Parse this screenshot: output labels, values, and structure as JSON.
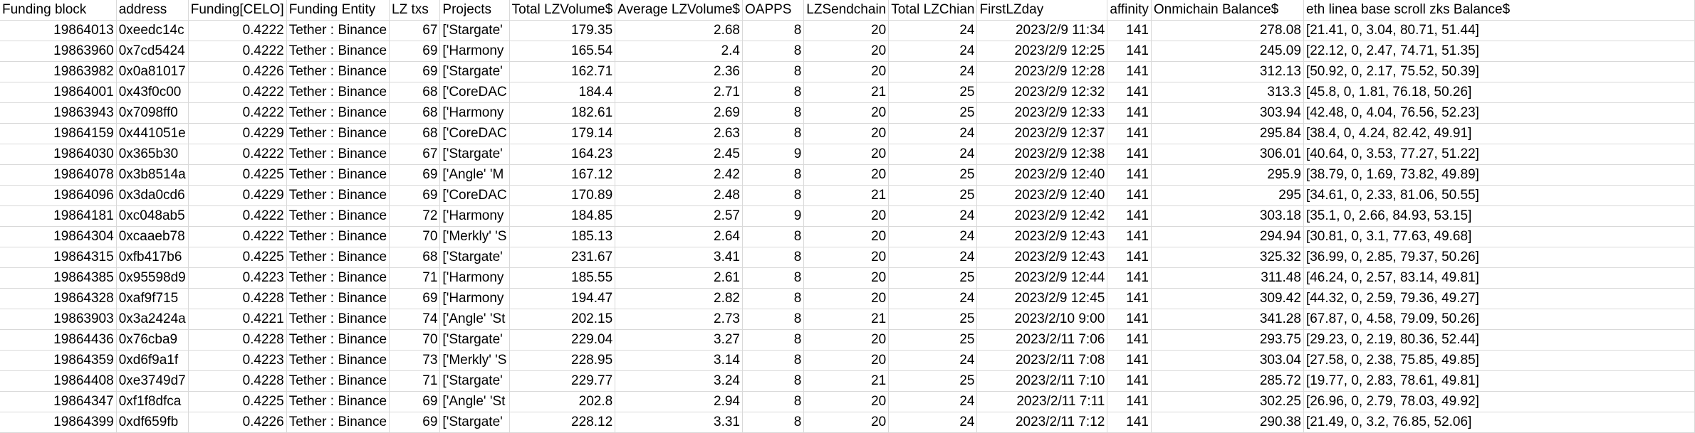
{
  "sheet": {
    "columns": [
      {
        "key": "funding_block",
        "header": "Funding block",
        "align": "num"
      },
      {
        "key": "address",
        "header": "address",
        "align": "txt"
      },
      {
        "key": "funding_celo",
        "header": "Funding[CELO]",
        "align": "num"
      },
      {
        "key": "funding_entity",
        "header": "Funding Entity",
        "align": "txt"
      },
      {
        "key": "lz_txs",
        "header": "LZ txs",
        "align": "num"
      },
      {
        "key": "projects",
        "header": "Projects",
        "align": "txt"
      },
      {
        "key": "total_lz_volume",
        "header": "Total LZVolume$",
        "align": "num"
      },
      {
        "key": "avg_lz_volume",
        "header": "Average LZVolume$",
        "align": "num"
      },
      {
        "key": "oapps",
        "header": "OAPPS",
        "align": "num"
      },
      {
        "key": "lz_sendchain",
        "header": "LZSendchain",
        "align": "num"
      },
      {
        "key": "total_lz_chian",
        "header": "Total LZChian",
        "align": "num"
      },
      {
        "key": "first_lz_day",
        "header": "FirstLZday",
        "align": "num"
      },
      {
        "key": "affinity",
        "header": "affinity",
        "align": "num"
      },
      {
        "key": "onmichain_balance",
        "header": "Onmichain Balance$",
        "align": "num"
      },
      {
        "key": "chain_balances",
        "header": "eth linea base scroll zks Balance$",
        "align": "txt"
      }
    ],
    "rows": [
      [
        "19864013",
        "0xeedc14c",
        "0.4222",
        "Tether : Binance",
        "67",
        "['Stargate'",
        "179.35",
        "2.68",
        "8",
        "20",
        "24",
        "2023/2/9 11:34",
        "141",
        "278.08",
        "[21.41, 0, 3.04, 80.71, 51.44]"
      ],
      [
        "19863960",
        "0x7cd5424",
        "0.4222",
        "Tether : Binance",
        "69",
        "['Harmony",
        "165.54",
        "2.4",
        "8",
        "20",
        "24",
        "2023/2/9 12:25",
        "141",
        "245.09",
        "[22.12, 0, 2.47, 74.71, 51.35]"
      ],
      [
        "19863982",
        "0x0a81017",
        "0.4226",
        "Tether : Binance",
        "69",
        "['Stargate'",
        "162.71",
        "2.36",
        "8",
        "20",
        "24",
        "2023/2/9 12:28",
        "141",
        "312.13",
        "[50.92, 0, 2.17, 75.52, 50.39]"
      ],
      [
        "19864001",
        "0x43f0c00",
        "0.4222",
        "Tether : Binance",
        "68",
        "['CoreDAC",
        "184.4",
        "2.71",
        "8",
        "21",
        "25",
        "2023/2/9 12:32",
        "141",
        "313.3",
        "[45.8, 0, 1.81, 76.18, 50.26]"
      ],
      [
        "19863943",
        "0x7098ff0",
        "0.4222",
        "Tether : Binance",
        "68",
        "['Harmony",
        "182.61",
        "2.69",
        "8",
        "20",
        "25",
        "2023/2/9 12:33",
        "141",
        "303.94",
        "[42.48, 0, 4.04, 76.56, 52.23]"
      ],
      [
        "19864159",
        "0x441051e",
        "0.4229",
        "Tether : Binance",
        "68",
        "['CoreDAC",
        "179.14",
        "2.63",
        "8",
        "20",
        "24",
        "2023/2/9 12:37",
        "141",
        "295.84",
        "[38.4, 0, 4.24, 82.42, 49.91]"
      ],
      [
        "19864030",
        "0x365b30",
        "0.4222",
        "Tether : Binance",
        "67",
        "['Stargate'",
        "164.23",
        "2.45",
        "9",
        "20",
        "24",
        "2023/2/9 12:38",
        "141",
        "306.01",
        "[40.64, 0, 3.53, 77.27, 51.22]"
      ],
      [
        "19864078",
        "0x3b8514a",
        "0.4225",
        "Tether : Binance",
        "69",
        "['Angle' 'M",
        "167.12",
        "2.42",
        "8",
        "20",
        "25",
        "2023/2/9 12:40",
        "141",
        "295.9",
        "[38.79, 0, 1.69, 73.82, 49.89]"
      ],
      [
        "19864096",
        "0x3da0cd6",
        "0.4229",
        "Tether : Binance",
        "69",
        "['CoreDAC",
        "170.89",
        "2.48",
        "8",
        "21",
        "25",
        "2023/2/9 12:40",
        "141",
        "295",
        "[34.61, 0, 2.33, 81.06, 50.55]"
      ],
      [
        "19864181",
        "0xc048ab5",
        "0.4222",
        "Tether : Binance",
        "72",
        "['Harmony",
        "184.85",
        "2.57",
        "9",
        "20",
        "24",
        "2023/2/9 12:42",
        "141",
        "303.18",
        "[35.1, 0, 2.66, 84.93, 53.15]"
      ],
      [
        "19864304",
        "0xcaaeb78",
        "0.4222",
        "Tether : Binance",
        "70",
        "['Merkly' 'S",
        "185.13",
        "2.64",
        "8",
        "20",
        "24",
        "2023/2/9 12:43",
        "141",
        "294.94",
        "[30.81, 0, 3.1, 77.63, 49.68]"
      ],
      [
        "19864315",
        "0xfb417b6",
        "0.4225",
        "Tether : Binance",
        "68",
        "['Stargate'",
        "231.67",
        "3.41",
        "8",
        "20",
        "24",
        "2023/2/9 12:43",
        "141",
        "325.32",
        "[36.99, 0, 2.85, 79.37, 50.26]"
      ],
      [
        "19864385",
        "0x95598d9",
        "0.4223",
        "Tether : Binance",
        "71",
        "['Harmony",
        "185.55",
        "2.61",
        "8",
        "20",
        "25",
        "2023/2/9 12:44",
        "141",
        "311.48",
        "[46.24, 0, 2.57, 83.14, 49.81]"
      ],
      [
        "19864328",
        "0xaf9f715",
        "0.4228",
        "Tether : Binance",
        "69",
        "['Harmony",
        "194.47",
        "2.82",
        "8",
        "20",
        "24",
        "2023/2/9 12:45",
        "141",
        "309.42",
        "[44.32, 0, 2.59, 79.36, 49.27]"
      ],
      [
        "19863903",
        "0x3a2424a",
        "0.4221",
        "Tether : Binance",
        "74",
        "['Angle' 'St",
        "202.15",
        "2.73",
        "8",
        "21",
        "25",
        "2023/2/10 9:00",
        "141",
        "341.28",
        "[67.87, 0, 4.58, 79.09, 50.26]"
      ],
      [
        "19864436",
        "0x76cba9",
        "0.4228",
        "Tether : Binance",
        "70",
        "['Stargate'",
        "229.04",
        "3.27",
        "8",
        "20",
        "25",
        "2023/2/11 7:06",
        "141",
        "293.75",
        "[29.23, 0, 2.19, 80.36, 52.44]"
      ],
      [
        "19864359",
        "0xd6f9a1f",
        "0.4223",
        "Tether : Binance",
        "73",
        "['Merkly' 'S",
        "228.95",
        "3.14",
        "8",
        "20",
        "24",
        "2023/2/11 7:08",
        "141",
        "303.04",
        "[27.58, 0, 2.38, 75.85, 49.85]"
      ],
      [
        "19864408",
        "0xe3749d7",
        "0.4228",
        "Tether : Binance",
        "71",
        "['Stargate'",
        "229.77",
        "3.24",
        "8",
        "21",
        "25",
        "2023/2/11 7:10",
        "141",
        "285.72",
        "[19.77, 0, 2.83, 78.61, 49.81]"
      ],
      [
        "19864347",
        "0xf1f8dfca",
        "0.4225",
        "Tether : Binance",
        "69",
        "['Angle' 'St",
        "202.8",
        "2.94",
        "8",
        "20",
        "24",
        "2023/2/11 7:11",
        "141",
        "302.25",
        "[26.96, 0, 2.79, 78.03, 49.92]"
      ],
      [
        "19864399",
        "0xdf659fb",
        "0.4226",
        "Tether : Binance",
        "69",
        "['Stargate'",
        "228.12",
        "3.31",
        "8",
        "20",
        "24",
        "2023/2/11 7:12",
        "141",
        "290.38",
        "[21.49, 0, 3.2, 76.85, 52.06]"
      ]
    ]
  }
}
